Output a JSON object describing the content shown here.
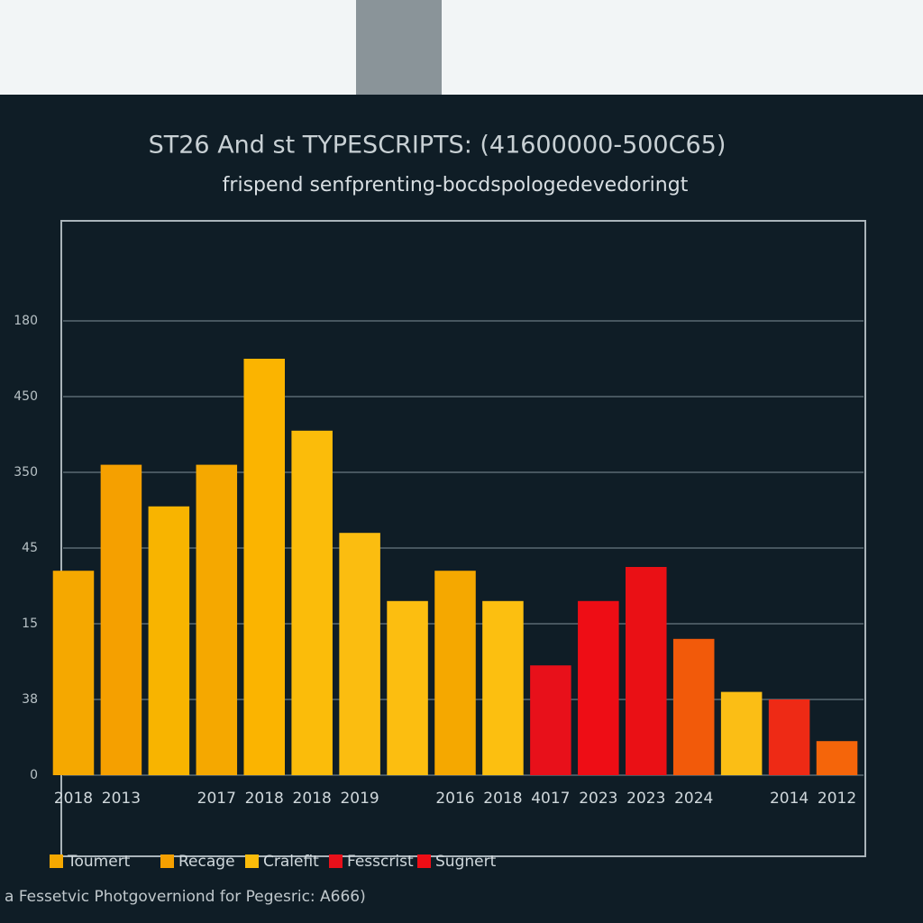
{
  "chart_data": {
    "type": "bar",
    "title": "ST26 And st TYPESCRIPTS: (41600000-500C65)",
    "subtitle": "frispend senfprenting-bocdspologedevedoringt",
    "footer": "a Fessetvic Photgoverniond for Pegesric: A666)",
    "categories": [
      "2018",
      "2013",
      null,
      "2017",
      "2018",
      "2018",
      "2019",
      null,
      "2016",
      "2018",
      "4017",
      "2023",
      "2023",
      "2024",
      null,
      "2014",
      "2012"
    ],
    "values": [
      2.7,
      4.1,
      3.55,
      4.1,
      5.5,
      4.55,
      3.2,
      2.3,
      2.7,
      2.3,
      1.45,
      2.3,
      2.75,
      1.8,
      1.1,
      1.0,
      0.45
    ],
    "colors": [
      "#f5a800",
      "#f5a000",
      "#f8b400",
      "#f5a800",
      "#fbb400",
      "#fbbc0a",
      "#fbbd10",
      "#fcbe10",
      "#f5a800",
      "#fcbf10",
      "#e8101a",
      "#ee0d15",
      "#ea1015",
      "#f25a0a",
      "#fbbe15",
      "#ee2a15",
      "#f5650a"
    ],
    "ylim": [
      0,
      7
    ],
    "yticks": [
      0,
      {
        "value": 1,
        "label": "38"
      },
      {
        "value": 2,
        "label": "15"
      },
      {
        "value": 3,
        "label": "45"
      },
      {
        "value": 4,
        "label": "350"
      },
      {
        "value": 5,
        "label": "450"
      },
      {
        "value": 6,
        "label": "180"
      }
    ],
    "grid": true,
    "legend": [
      {
        "name": "Toumert",
        "color": "#f5a800"
      },
      {
        "name": "Recage",
        "color": "#f5a000"
      },
      {
        "name": "Cralefit",
        "color": "#fbbc0a"
      },
      {
        "name": "Fesscrist",
        "color": "#e8101a"
      },
      {
        "name": "Sugnert",
        "color": "#ee0d15"
      }
    ]
  }
}
